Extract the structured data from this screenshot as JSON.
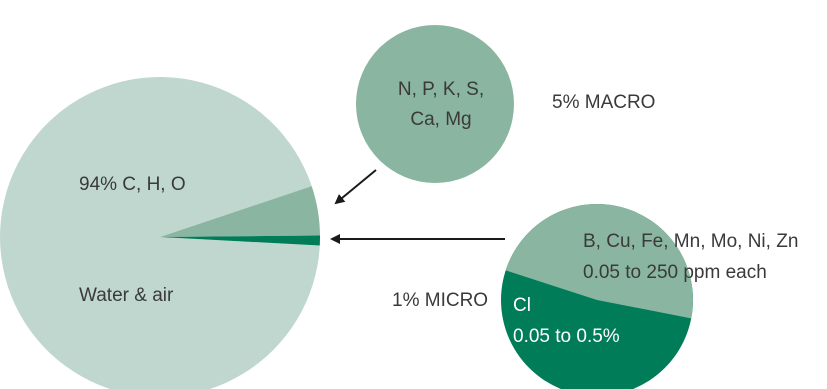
{
  "colors": {
    "large_pie": "#c0d7cf",
    "macro": "#8ab5a1",
    "micro": "#007c58",
    "arrow": "#1a1a1a",
    "text_dark": "#3a3a3a",
    "text_light": "#ffffff"
  },
  "main_pie": {
    "label_cho": "94% C, H, O",
    "label_water": "Water & air"
  },
  "macro": {
    "line1": "N, P, K, S,",
    "line2": "Ca, Mg",
    "side_label": "5% MACRO"
  },
  "micro": {
    "side_label": "1% MICRO",
    "trace_line1": "B, Cu, Fe, Mn, Mo, Ni, Zn",
    "trace_line2": "0.05 to 250 ppm each",
    "cl_line1": "Cl",
    "cl_line2": "0.05 to 0.5%"
  },
  "chart_data": {
    "type": "pie",
    "series": [
      {
        "name": "94% C, H, O",
        "value": 94
      },
      {
        "name": "5% MACRO",
        "value": 5
      },
      {
        "name": "1% MICRO",
        "value": 1
      }
    ]
  }
}
